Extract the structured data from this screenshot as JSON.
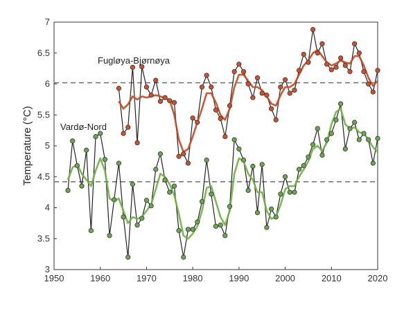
{
  "chart_data": {
    "type": "line",
    "ylabel": "Temperature (°C)",
    "xlim": [
      1950,
      2020
    ],
    "ylim": [
      3,
      7
    ],
    "xticks": [
      1950,
      1960,
      1970,
      1980,
      1990,
      2000,
      2010,
      2020
    ],
    "yticks": [
      3,
      3.5,
      4,
      4.5,
      5,
      5.5,
      6,
      6.5,
      7
    ],
    "grid": false,
    "reference_lines": [
      6.02,
      4.42
    ],
    "annotations": [
      "Fugløya-Bjørnøya",
      "Vardø-Nord"
    ],
    "series": [
      {
        "name": "Fugløya-Bjørnøya",
        "marker_color": "#d0502a",
        "line_color": "#222222",
        "smooth_color": "#c8461e",
        "x": [
          1964,
          1965,
          1966,
          1967,
          1968,
          1969,
          1970,
          1971,
          1972,
          1973,
          1974,
          1975,
          1976,
          1977,
          1978,
          1979,
          1980,
          1981,
          1982,
          1983,
          1984,
          1985,
          1986,
          1987,
          1988,
          1989,
          1990,
          1991,
          1992,
          1993,
          1994,
          1995,
          1996,
          1997,
          1998,
          1999,
          2000,
          2001,
          2002,
          2003,
          2004,
          2005,
          2006,
          2007,
          2008,
          2009,
          2010,
          2011,
          2012,
          2013,
          2014,
          2015,
          2016,
          2017,
          2018,
          2019,
          2020
        ],
        "values": [
          5.93,
          5.2,
          5.3,
          6.27,
          5.05,
          6.28,
          5.95,
          5.82,
          6.06,
          5.72,
          5.78,
          5.73,
          5.7,
          4.83,
          4.87,
          4.72,
          5.45,
          5.38,
          5.95,
          6.14,
          5.95,
          5.58,
          5.44,
          5.15,
          5.65,
          6.2,
          6.32,
          6.2,
          6.0,
          5.78,
          6.1,
          5.85,
          5.82,
          5.6,
          5.42,
          5.95,
          6.07,
          5.85,
          5.9,
          6.22,
          6.48,
          6.35,
          6.88,
          6.5,
          6.65,
          6.32,
          6.23,
          6.27,
          6.42,
          6.3,
          6.2,
          6.65,
          6.5,
          6.2,
          6.0,
          5.87,
          6.22
        ],
        "smoothed": [
          5.72,
          5.6,
          5.67,
          5.8,
          5.75,
          5.8,
          5.78,
          5.8,
          5.82,
          5.8,
          5.77,
          5.74,
          5.5,
          5.1,
          4.9,
          4.95,
          5.15,
          5.38,
          5.6,
          5.85,
          5.85,
          5.7,
          5.5,
          5.42,
          5.6,
          5.95,
          6.15,
          6.15,
          6.05,
          5.95,
          5.95,
          5.9,
          5.8,
          5.68,
          5.65,
          5.82,
          5.95,
          5.95,
          6.0,
          6.15,
          6.3,
          6.38,
          6.5,
          6.55,
          6.45,
          6.35,
          6.3,
          6.33,
          6.38,
          6.35,
          6.33,
          6.45,
          6.45,
          6.3,
          6.1,
          5.97,
          6.05
        ]
      },
      {
        "name": "Vardø-Nord",
        "marker_color": "#6aa84f",
        "line_color": "#222222",
        "smooth_color": "#6db33f",
        "x": [
          1953,
          1954,
          1955,
          1956,
          1957,
          1958,
          1959,
          1960,
          1961,
          1962,
          1963,
          1964,
          1965,
          1966,
          1967,
          1968,
          1969,
          1970,
          1971,
          1972,
          1973,
          1974,
          1975,
          1976,
          1977,
          1978,
          1979,
          1980,
          1981,
          1982,
          1983,
          1984,
          1985,
          1986,
          1987,
          1988,
          1989,
          1990,
          1991,
          1992,
          1993,
          1994,
          1995,
          1996,
          1997,
          1998,
          1999,
          2000,
          2001,
          2002,
          2003,
          2004,
          2005,
          2006,
          2007,
          2008,
          2009,
          2010,
          2011,
          2012,
          2013,
          2014,
          2015,
          2016,
          2017,
          2018,
          2019,
          2020
        ],
        "values": [
          4.28,
          5.08,
          4.68,
          4.35,
          4.93,
          3.63,
          5.15,
          5.2,
          4.78,
          3.55,
          4.13,
          4.72,
          3.85,
          3.2,
          4.38,
          3.72,
          3.83,
          4.12,
          4.03,
          4.62,
          4.87,
          4.45,
          4.25,
          4.35,
          3.63,
          3.2,
          3.65,
          3.65,
          3.77,
          4.1,
          4.77,
          4.22,
          3.7,
          3.72,
          3.55,
          4.02,
          5.1,
          4.95,
          4.77,
          4.28,
          4.67,
          3.92,
          4.7,
          3.68,
          3.98,
          3.85,
          4.22,
          4.5,
          4.25,
          4.25,
          4.62,
          4.68,
          4.82,
          5.02,
          5.28,
          4.85,
          5.1,
          5.2,
          5.42,
          5.68,
          4.95,
          5.28,
          5.38,
          5.1,
          5.2,
          5.1,
          4.72,
          5.12
        ],
        "smoothed": [
          4.45,
          4.65,
          4.7,
          4.55,
          4.45,
          4.35,
          4.6,
          4.8,
          4.6,
          4.15,
          4.1,
          4.15,
          3.95,
          3.75,
          3.85,
          3.82,
          3.85,
          3.95,
          4.05,
          4.3,
          4.55,
          4.5,
          4.38,
          4.2,
          3.9,
          3.55,
          3.5,
          3.58,
          3.7,
          3.95,
          4.32,
          4.35,
          4.1,
          3.85,
          3.72,
          3.95,
          4.55,
          4.8,
          4.75,
          4.55,
          4.45,
          4.25,
          4.25,
          3.95,
          3.82,
          3.85,
          4.05,
          4.3,
          4.35,
          4.35,
          4.5,
          4.62,
          4.75,
          4.95,
          5.0,
          4.92,
          5.05,
          5.35,
          5.55,
          5.6,
          5.35,
          5.28,
          5.3,
          5.22,
          5.2,
          5.1,
          4.98,
          4.9
        ]
      }
    ]
  }
}
